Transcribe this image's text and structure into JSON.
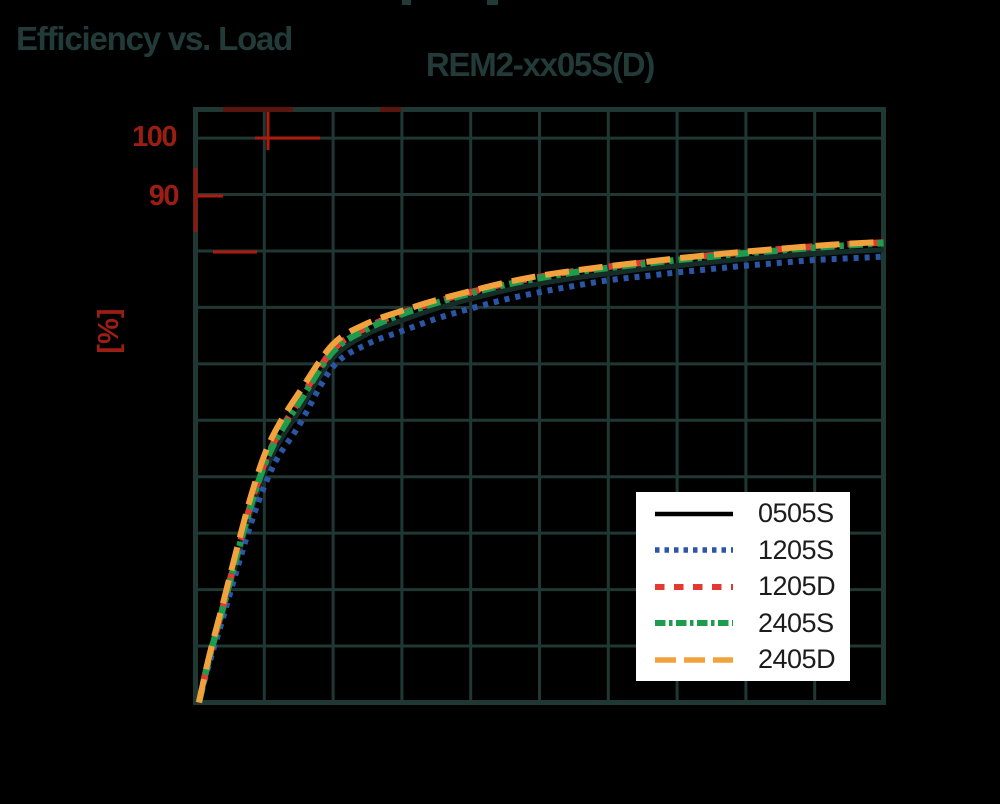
{
  "heading": "Efficiency vs. Load",
  "chart_data": {
    "type": "line",
    "title": "REM2-xx05S(D)",
    "ylabel": "[%]",
    "y_tick_labels_visible": [
      "100",
      "90"
    ],
    "xlim": [
      0,
      100
    ],
    "ylim": [
      0,
      105
    ],
    "grid": true,
    "grid_step": {
      "x": 10,
      "y": 10
    },
    "legend_position": "inside-lower-right",
    "x_loads_percent": [
      0.5,
      2,
      4,
      6,
      8,
      10,
      12,
      15,
      20,
      25,
      30,
      35,
      40,
      45,
      50,
      55,
      60,
      65,
      70,
      75,
      80,
      85,
      90,
      95,
      100
    ],
    "series": [
      {
        "name": "0505S",
        "color": "#000000",
        "plot_color": "#152C27",
        "dash": "solid",
        "values": [
          0,
          7.5,
          16,
          25,
          33.5,
          40.5,
          45.8,
          51.5,
          61,
          65.3,
          67.7,
          69.8,
          71.5,
          73,
          74.2,
          75.2,
          76,
          76.8,
          77.4,
          78,
          78.6,
          79.1,
          79.5,
          79.9,
          80.2
        ]
      },
      {
        "name": "1205S",
        "color": "#2B55A5",
        "plot_color": "#2B55A5",
        "dash": "dotted",
        "values": [
          0,
          7,
          15,
          23.5,
          31.5,
          38.3,
          43.5,
          49,
          59.5,
          63.5,
          65.8,
          68,
          69.8,
          71.4,
          72.7,
          73.8,
          74.8,
          75.5,
          76.2,
          76.8,
          77.4,
          77.9,
          78.4,
          78.7,
          79
        ]
      },
      {
        "name": "1205D",
        "color": "#E5392F",
        "plot_color": "#E5392F",
        "dash": "dashed",
        "values": [
          0,
          8,
          17,
          26.3,
          35,
          42.3,
          47.5,
          53.3,
          62.5,
          66.5,
          69,
          71,
          72.7,
          74.2,
          75.4,
          76.4,
          77.2,
          77.9,
          78.6,
          79.2,
          79.8,
          80.3,
          80.8,
          81.2,
          81.5
        ]
      },
      {
        "name": "2405S",
        "color": "#1D9C4E",
        "plot_color": "#1D9C4E",
        "dash": "dashdot",
        "values": [
          0,
          7.9,
          16.8,
          26,
          34.7,
          42,
          47.2,
          53,
          62.2,
          66.2,
          68.8,
          70.8,
          72.5,
          74,
          75.2,
          76.2,
          77,
          77.7,
          78.4,
          79,
          79.6,
          80.1,
          80.6,
          81,
          81.4
        ]
      },
      {
        "name": "2405D",
        "color": "#F2A23C",
        "plot_color": "#F2A23C",
        "dash": "longdash",
        "values": [
          0,
          8.3,
          17.6,
          27.2,
          36.3,
          43.8,
          49,
          54.8,
          63.5,
          67.2,
          69.4,
          71.3,
          72.9,
          74.4,
          75.6,
          76.5,
          77.3,
          78,
          78.7,
          79.3,
          79.9,
          80.4,
          80.9,
          81.3,
          81.6
        ]
      }
    ]
  },
  "theme": {
    "background": "#000000",
    "grid_color": "#1F3834",
    "heading_color": "#233B38",
    "axis_label_red": "#9C1D13",
    "fragment_red": "#AF1B10",
    "fragment_dark_red": "#5A150E",
    "legend_background": "#FFFFFF",
    "legend_text": "#1C1C1C"
  }
}
